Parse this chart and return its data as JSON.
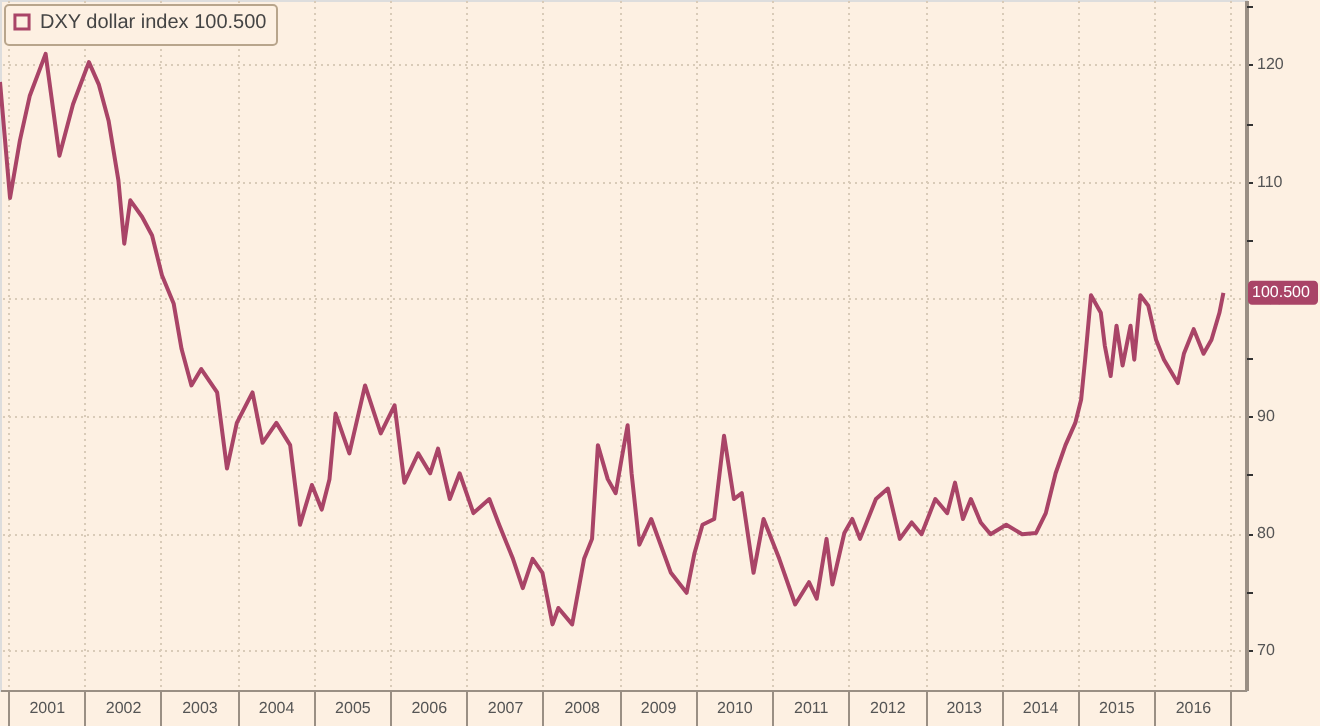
{
  "chart_data": {
    "type": "line",
    "x": [
      "2000-11-23",
      "2001-01-10",
      "2001-02-26",
      "2001-04-14",
      "2001-06-29",
      "2001-09-03",
      "2001-11-07",
      "2002-01-22",
      "2002-03-10",
      "2002-04-26",
      "2002-06-12",
      "2002-07-10",
      "2002-08-08",
      "2002-10-03",
      "2002-11-20",
      "2003-01-06",
      "2003-03-03",
      "2003-04-10",
      "2003-05-27",
      "2003-07-13",
      "2003-09-27",
      "2003-11-13",
      "2003-12-30",
      "2004-03-14",
      "2004-05-01",
      "2004-07-06",
      "2004-09-10",
      "2004-10-27",
      "2004-12-23",
      "2005-02-08",
      "2005-03-17",
      "2005-04-15",
      "2005-06-20",
      "2005-09-03",
      "2005-11-17",
      "2006-01-22",
      "2006-03-10",
      "2006-05-15",
      "2006-07-11",
      "2006-08-18",
      "2006-10-13",
      "2006-11-29",
      "2007-02-03",
      "2007-04-20",
      "2007-06-06",
      "2007-08-11",
      "2007-09-27",
      "2007-11-13",
      "2007-12-30",
      "2008-02-16",
      "2008-03-15",
      "2008-05-20",
      "2008-07-16",
      "2008-08-23",
      "2008-09-20",
      "2008-11-06",
      "2008-12-14",
      "2009-01-11",
      "2009-02-09",
      "2009-02-28",
      "2009-04-06",
      "2009-06-02",
      "2009-09-04",
      "2009-11-18",
      "2009-12-26",
      "2010-02-02",
      "2010-03-30",
      "2010-05-16",
      "2010-07-02",
      "2010-08-09",
      "2010-10-04",
      "2010-11-21",
      "2011-02-04",
      "2011-04-21",
      "2011-06-26",
      "2011-08-02",
      "2011-09-18",
      "2011-10-16",
      "2011-12-12",
      "2012-01-19",
      "2012-02-25",
      "2012-05-11",
      "2012-07-07",
      "2012-09-02",
      "2012-10-29",
      "2012-12-15",
      "2013-02-19",
      "2013-04-17",
      "2013-05-24",
      "2013-07-01",
      "2013-08-08",
      "2013-09-24",
      "2013-11-10",
      "2014-01-24",
      "2014-04-10",
      "2014-06-15",
      "2014-08-01",
      "2014-09-17",
      "2014-11-03",
      "2014-12-20",
      "2015-01-17",
      "2015-02-05",
      "2015-03-05",
      "2015-04-21",
      "2015-05-10",
      "2015-06-07",
      "2015-07-05",
      "2015-08-03",
      "2015-09-10",
      "2015-09-28",
      "2015-10-27",
      "2015-12-04",
      "2016-01-10",
      "2016-02-17",
      "2016-04-23",
      "2016-05-22",
      "2016-07-08",
      "2016-08-24",
      "2016-10-01",
      "2016-11-08",
      "2016-11-27"
    ],
    "series": [
      {
        "name": "DXY dollar index 100.500",
        "color": "#a94467",
        "values": [
          118.5,
          108.6,
          113.5,
          117.3,
          120.9,
          112.2,
          116.6,
          120.2,
          118.3,
          115.2,
          110.1,
          104.7,
          108.4,
          107,
          105.4,
          102,
          99.6,
          95.7,
          92.6,
          94,
          92,
          85.5,
          89.4,
          92,
          87.7,
          89.4,
          87.5,
          80.7,
          84.1,
          82,
          84.6,
          90.2,
          86.8,
          92.6,
          88.5,
          90.9,
          84.3,
          86.8,
          85.1,
          87.2,
          82.9,
          85.1,
          81.7,
          82.9,
          80.7,
          77.8,
          75.3,
          77.8,
          76.6,
          72.2,
          73.6,
          72.2,
          77.8,
          79.5,
          87.5,
          84.6,
          83.4,
          86.3,
          89.2,
          85.1,
          79,
          81.2,
          76.6,
          74.9,
          78.3,
          80.7,
          81.2,
          88.3,
          82.9,
          83.4,
          76.6,
          81.2,
          77.8,
          73.9,
          75.8,
          74.4,
          79.5,
          75.6,
          80,
          81.2,
          79.5,
          82.9,
          83.8,
          79.5,
          80.9,
          79.9,
          82.9,
          81.7,
          84.3,
          81.2,
          82.9,
          80.9,
          79.9,
          80.7,
          79.9,
          80,
          81.7,
          85.1,
          87.5,
          89.4,
          91.4,
          94.8,
          100.3,
          98.8,
          96,
          93.4,
          97.7,
          94.3,
          97.7,
          94.8,
          100.3,
          99.4,
          96.5,
          94.8,
          92.8,
          95.3,
          97.4,
          95.3,
          96.5,
          98.8,
          100.5
        ]
      }
    ],
    "xlim": [
      "2000-11-23",
      "2017-03-15"
    ],
    "xticks": [
      {
        "value": "2001-01-01",
        "label": null
      },
      {
        "value": "2001-07-02",
        "label": "2001"
      },
      {
        "value": "2002-01-01",
        "label": null
      },
      {
        "value": "2002-07-02",
        "label": "2002"
      },
      {
        "value": "2003-01-01",
        "label": null
      },
      {
        "value": "2003-07-02",
        "label": "2003"
      },
      {
        "value": "2004-01-01",
        "label": null
      },
      {
        "value": "2004-07-02",
        "label": "2004"
      },
      {
        "value": "2005-01-01",
        "label": null
      },
      {
        "value": "2005-07-02",
        "label": "2005"
      },
      {
        "value": "2006-01-01",
        "label": null
      },
      {
        "value": "2006-07-02",
        "label": "2006"
      },
      {
        "value": "2007-01-01",
        "label": null
      },
      {
        "value": "2007-07-02",
        "label": "2007"
      },
      {
        "value": "2008-01-01",
        "label": null
      },
      {
        "value": "2008-07-02",
        "label": "2008"
      },
      {
        "value": "2009-01-01",
        "label": null
      },
      {
        "value": "2009-07-02",
        "label": "2009"
      },
      {
        "value": "2010-01-01",
        "label": null
      },
      {
        "value": "2010-07-02",
        "label": "2010"
      },
      {
        "value": "2011-01-01",
        "label": null
      },
      {
        "value": "2011-07-02",
        "label": "2011"
      },
      {
        "value": "2012-01-01",
        "label": null
      },
      {
        "value": "2012-07-02",
        "label": "2012"
      },
      {
        "value": "2013-01-01",
        "label": null
      },
      {
        "value": "2013-07-02",
        "label": "2013"
      },
      {
        "value": "2014-01-01",
        "label": null
      },
      {
        "value": "2014-07-02",
        "label": "2014"
      },
      {
        "value": "2015-01-01",
        "label": null
      },
      {
        "value": "2015-07-02",
        "label": "2015"
      },
      {
        "value": "2016-01-01",
        "label": null
      },
      {
        "value": "2016-07-02",
        "label": "2016"
      },
      {
        "value": "2017-01-01",
        "label": null
      }
    ],
    "ylim": [
      66.6,
      125.5
    ],
    "yticks": [
      70,
      {
        "value": 75,
        "label": null
      },
      80,
      {
        "value": 85,
        "label": null
      },
      90,
      {
        "value": 95,
        "label": null
      },
      100,
      {
        "value": 105,
        "label": null
      },
      110,
      {
        "value": 115,
        "label": null
      },
      120,
      {
        "value": 125,
        "label": null
      }
    ],
    "grid": true,
    "legend": "top left",
    "annotations": [
      {
        "text": "100.500",
        "x": "2016-11-27",
        "y": 100.5
      }
    ]
  }
}
